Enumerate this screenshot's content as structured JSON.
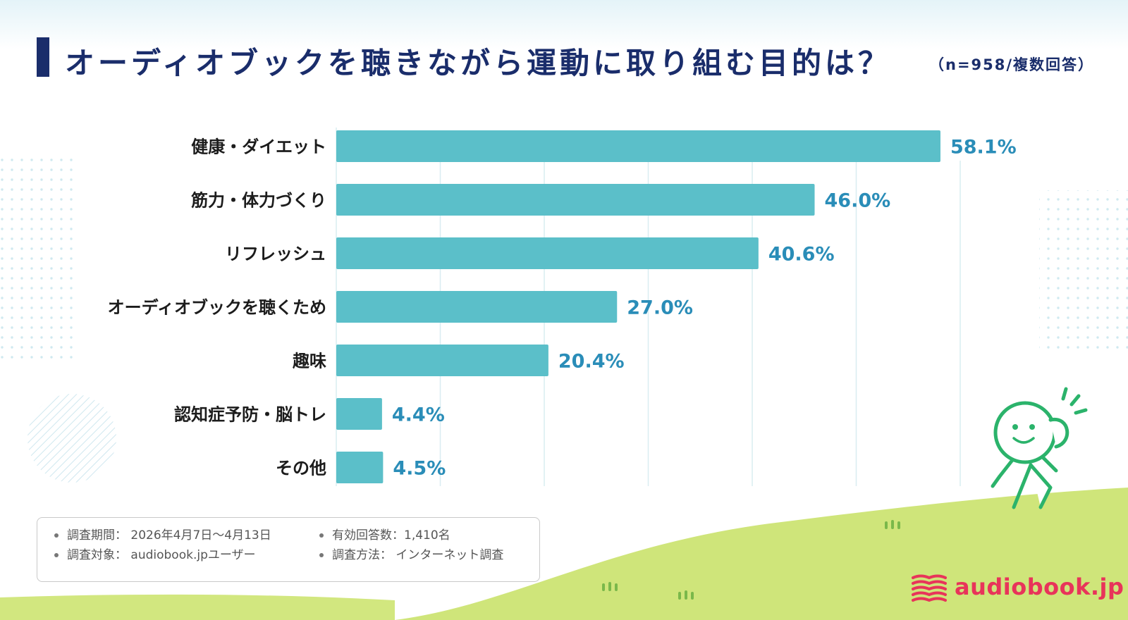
{
  "header": {
    "title": "オーディオブックを聴きながら運動に取り組む目的は？",
    "subtitle": "（n=958/複数回答）"
  },
  "chart_data": {
    "type": "bar",
    "orientation": "horizontal",
    "title": "オーディオブックを聴きながら運動に取り組む目的は？",
    "categories": [
      "健康・ダイエット",
      "筋力・体力づくり",
      "リフレッシュ",
      "オーディオブックを聴くため",
      "趣味",
      "認知症予防・脳トレ",
      "その他"
    ],
    "values": [
      58.1,
      46.0,
      40.6,
      27.0,
      20.4,
      4.4,
      4.5
    ],
    "value_labels": [
      "58.1%",
      "46.0%",
      "40.6%",
      "27.0%",
      "20.4%",
      "4.4%",
      "4.5%"
    ],
    "unit": "%",
    "xlim": [
      0,
      60
    ],
    "grid_step": 10,
    "grid": true,
    "xlabel": "",
    "ylabel": ""
  },
  "notes": {
    "period": "調査期間：  2026年4月7日〜4月13日",
    "target": "調査対象：  audiobook.jpユーザー",
    "responses": "有効回答数：1,410名",
    "method": "調査方法：  インターネット調査"
  },
  "brand": {
    "name": "audiobook.jp",
    "color": "#e8345a"
  },
  "colors": {
    "bar": "#5bbfc9",
    "value_text": "#2a8db8",
    "title": "#1a2d6b",
    "grass": "#cfe57a"
  }
}
